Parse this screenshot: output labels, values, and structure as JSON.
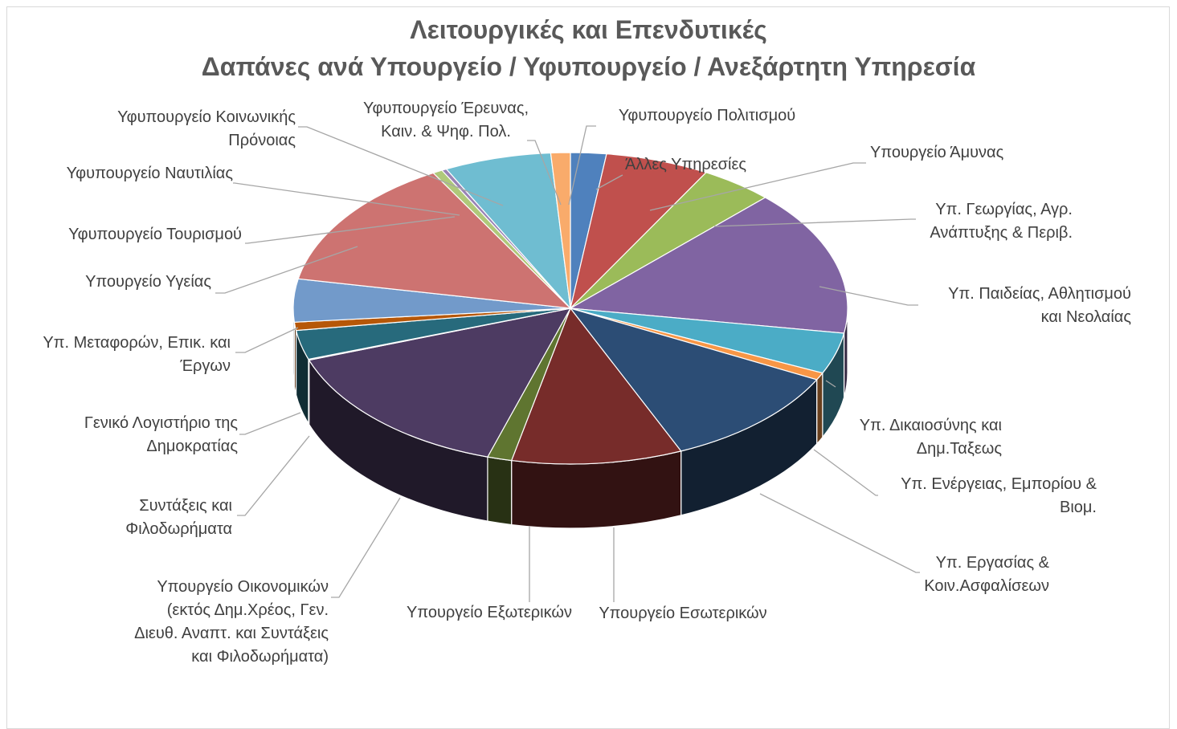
{
  "chart_data": {
    "type": "pie",
    "style": "3d",
    "title": [
      "Λειτουργικές και Επενδυτικές",
      "Δαπάνες ανά Υπουργείο / Υφυπουργείο / Ανεξάρτητη Υπηρεσία"
    ],
    "legend": "none",
    "categories": [
      "Άλλες Υπηρεσίες",
      "Υπουργείο Άμυνας",
      "Υπ. Γεωργίας, Αγρ. Ανάπτυξης & Περιβ.",
      "Υπ. Παιδείας, Αθλητισμού και Νεολαίας",
      "Υπ. Δικαιοσύνης και Δημ.Ταξεως",
      "Υπ. Ενέργειας, Εμπορίου & Βιομ.",
      "Υπ. Εργασίας & Κοιν.Ασφαλίσεων",
      "Υπουργείο Εσωτερικών",
      "Υπουργείο Εξωτερικών",
      "Υπουργείο Οικονομικών (εκτός Δημ.Χρέος, Γεν. Διευθ. Αναπτ. και Συντάξεις και Φιλοδωρήματα)",
      "Συντάξεις και Φιλοδωρήματα",
      "Γενικό Λογιστήριο της Δημοκρατίας",
      "Υπ. Μεταφορών, Επικ. και Έργων",
      "Υπουργείο Υγείας",
      "Υφυπουργείο Τουρισμού",
      "Υφυπουργείο Ναυτιλίας",
      "Υφυπουργείο Κοινωνικής Πρόνοιας",
      "Υφυπουργείο Έρευνας, Καιν. & Ψηφ. Πολ.",
      "Υφυπουργείο Πολιτισμού"
    ],
    "label_lines": [
      [
        "Άλλες Υπηρεσίες"
      ],
      [
        "Υπουργείο Άμυνας"
      ],
      [
        "Υπ. Γεωργίας, Αγρ.",
        "Ανάπτυξης & Περιβ."
      ],
      [
        "Υπ. Παιδείας, Αθλητισμού",
        "και Νεολαίας"
      ],
      [
        "Υπ. Δικαιοσύνης και",
        "Δημ.Ταξεως"
      ],
      [
        "Υπ. Ενέργειας, Εμπορίου &",
        "Βιομ."
      ],
      [
        "Υπ. Εργασίας &",
        "Κοιν.Ασφαλίσεων"
      ],
      [
        "Υπουργείο Εσωτερικών"
      ],
      [
        "Υπουργείο Εξωτερικών"
      ],
      [
        "Υπουργείο Οικονομικών",
        "(εκτός Δημ.Χρέος, Γεν.",
        "Διευθ. Αναπτ. και Συντάξεις",
        "και Φιλοδωρήματα)"
      ],
      [
        "Συντάξεις και",
        "Φιλοδωρήματα"
      ],
      [
        "Γενικό Λογιστήριο της",
        "Δημοκρατίας"
      ],
      [
        "Υπ. Μεταφορών, Επικ. και",
        "Έργων"
      ],
      [
        "Υπουργείο Υγείας"
      ],
      [
        "Υφυπουργείο Τουρισμού"
      ],
      [
        "Υφυπουργείο Ναυτιλίας"
      ],
      [
        "Υφυπουργείο Κοινωνικής",
        "Πρόνοιας"
      ],
      [
        "Υφυπουργείο Έρευνας,",
        "Καιν. & Ψηφ. Πολ."
      ],
      [
        "Υφυπουργείο Πολιτισμού"
      ]
    ],
    "values": [
      2.2,
      6.4,
      4.5,
      16.0,
      4.5,
      0.8,
      11.5,
      10.5,
      1.5,
      15.6,
      0.1,
      3.2,
      0.9,
      4.7,
      14.5,
      0.6,
      0.3,
      6.6,
      1.2
    ],
    "colors": [
      "#4f81bd",
      "#c0504d",
      "#9bbb59",
      "#8064a2",
      "#4bacc6",
      "#f79646",
      "#2c4d75",
      "#772c2a",
      "#5f7530",
      "#4d3b62",
      "#276a7c",
      "#276a7c",
      "#b65708",
      "#729aca",
      "#cd7371",
      "#afc97a",
      "#9983b5",
      "#6fbdd1",
      "#f9ab6b"
    ]
  }
}
